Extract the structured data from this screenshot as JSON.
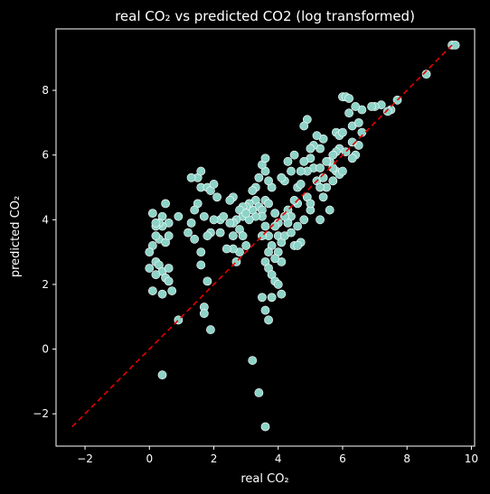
{
  "chart_data": {
    "type": "scatter",
    "title": "real CO₂ vs predicted CO2 (log transformed)",
    "xlabel": "real CO₂",
    "ylabel": "predicted CO₂",
    "xlim": [
      -2.9,
      10.1
    ],
    "ylim": [
      -3.0,
      9.9
    ],
    "xticks": [
      -2,
      0,
      2,
      4,
      6,
      8,
      10
    ],
    "yticks": [
      -2,
      0,
      2,
      4,
      6,
      8
    ],
    "grid": false,
    "colors": {
      "background": "#000000",
      "points": "#8dd3c7",
      "point_edge": "#ffffff",
      "reference_line": "#e50000",
      "axes": "#ffffff"
    },
    "reference_line": {
      "style": "dashed",
      "from": [
        -2.4,
        -2.4
      ],
      "to": [
        9.4,
        9.4
      ]
    },
    "points": [
      [
        9.4,
        9.4
      ],
      [
        9.5,
        9.4
      ],
      [
        8.6,
        8.5
      ],
      [
        7.7,
        7.7
      ],
      [
        7.5,
        7.4
      ],
      [
        7.4,
        7.35
      ],
      [
        7.2,
        7.55
      ],
      [
        7.0,
        7.5
      ],
      [
        6.9,
        7.5
      ],
      [
        6.6,
        7.4
      ],
      [
        6.4,
        7.5
      ],
      [
        6.3,
        6.9
      ],
      [
        6.5,
        7.0
      ],
      [
        6.6,
        6.7
      ],
      [
        6.5,
        6.3
      ],
      [
        6.4,
        6.0
      ],
      [
        6.3,
        5.9
      ],
      [
        6.2,
        7.3
      ],
      [
        6.0,
        7.8
      ],
      [
        6.1,
        7.8
      ],
      [
        6.2,
        7.75
      ],
      [
        5.8,
        6.7
      ],
      [
        5.9,
        6.6
      ],
      [
        6.0,
        6.7
      ],
      [
        5.9,
        6.2
      ],
      [
        5.8,
        6.1
      ],
      [
        5.6,
        5.8
      ],
      [
        5.7,
        6.0
      ],
      [
        5.8,
        5.5
      ],
      [
        5.9,
        5.4
      ],
      [
        6.0,
        5.5
      ],
      [
        5.7,
        5.2
      ],
      [
        5.5,
        5.0
      ],
      [
        5.4,
        4.7
      ],
      [
        5.3,
        6.2
      ],
      [
        5.4,
        6.5
      ],
      [
        5.2,
        6.6
      ],
      [
        5.1,
        6.3
      ],
      [
        5.0,
        6.2
      ],
      [
        4.9,
        7.1
      ],
      [
        4.8,
        6.9
      ],
      [
        5.0,
        5.9
      ],
      [
        5.1,
        5.6
      ],
      [
        5.2,
        5.2
      ],
      [
        5.3,
        5.0
      ],
      [
        5.5,
        5.8
      ],
      [
        5.3,
        5.6
      ],
      [
        4.9,
        5.5
      ],
      [
        4.7,
        5.5
      ],
      [
        4.8,
        5.8
      ],
      [
        4.5,
        6.0
      ],
      [
        4.3,
        5.8
      ],
      [
        4.4,
        5.5
      ],
      [
        4.6,
        5.0
      ],
      [
        4.7,
        5.1
      ],
      [
        4.9,
        4.7
      ],
      [
        5.0,
        4.3
      ],
      [
        4.8,
        4.0
      ],
      [
        4.6,
        4.5
      ],
      [
        4.5,
        4.6
      ],
      [
        4.3,
        4.3
      ],
      [
        4.4,
        4.1
      ],
      [
        4.3,
        3.9
      ],
      [
        4.2,
        4.1
      ],
      [
        4.0,
        3.9
      ],
      [
        3.9,
        3.8
      ],
      [
        4.0,
        3.5
      ],
      [
        4.1,
        3.3
      ],
      [
        4.0,
        3.0
      ],
      [
        4.1,
        2.7
      ],
      [
        3.9,
        2.8
      ],
      [
        3.8,
        3.2
      ],
      [
        3.7,
        3.5
      ],
      [
        3.6,
        3.8
      ],
      [
        3.7,
        3.0
      ],
      [
        3.6,
        2.7
      ],
      [
        3.7,
        2.5
      ],
      [
        3.8,
        2.3
      ],
      [
        3.9,
        2.1
      ],
      [
        4.0,
        2.0
      ],
      [
        4.1,
        1.7
      ],
      [
        3.8,
        1.6
      ],
      [
        3.6,
        1.2
      ],
      [
        3.5,
        1.6
      ],
      [
        3.7,
        0.9
      ],
      [
        3.6,
        -2.4
      ],
      [
        3.4,
        -1.35
      ],
      [
        3.2,
        -0.35
      ],
      [
        4.5,
        3.2
      ],
      [
        4.7,
        3.3
      ],
      [
        4.6,
        3.2
      ],
      [
        5.3,
        4.0
      ],
      [
        5.6,
        4.3
      ],
      [
        4.2,
        5.2
      ],
      [
        4.1,
        5.3
      ],
      [
        3.8,
        5.0
      ],
      [
        3.7,
        5.2
      ],
      [
        3.6,
        5.5
      ],
      [
        3.5,
        5.7
      ],
      [
        3.6,
        5.9
      ],
      [
        3.4,
        5.3
      ],
      [
        3.3,
        5.0
      ],
      [
        3.2,
        4.9
      ],
      [
        3.3,
        4.6
      ],
      [
        3.4,
        4.4
      ],
      [
        3.5,
        4.3
      ],
      [
        3.6,
        4.6
      ],
      [
        3.7,
        4.5
      ],
      [
        3.5,
        4.1
      ],
      [
        3.3,
        4.1
      ],
      [
        3.2,
        4.3
      ],
      [
        3.1,
        4.5
      ],
      [
        3.0,
        4.4
      ],
      [
        2.9,
        4.4
      ],
      [
        2.8,
        4.3
      ],
      [
        2.9,
        4.1
      ],
      [
        3.1,
        4.0
      ],
      [
        3.0,
        4.2
      ],
      [
        2.7,
        4.0
      ],
      [
        2.6,
        3.9
      ],
      [
        2.5,
        3.9
      ],
      [
        2.6,
        4.7
      ],
      [
        2.5,
        4.6
      ],
      [
        2.8,
        3.7
      ],
      [
        2.9,
        3.5
      ],
      [
        3.0,
        3.2
      ],
      [
        2.8,
        3.0
      ],
      [
        2.6,
        3.5
      ],
      [
        2.6,
        3.1
      ],
      [
        2.4,
        3.1
      ],
      [
        2.7,
        2.7
      ],
      [
        2.2,
        3.6
      ],
      [
        2.2,
        4.0
      ],
      [
        2.1,
        4.7
      ],
      [
        2.3,
        4.1
      ],
      [
        2.0,
        4.0
      ],
      [
        1.9,
        3.6
      ],
      [
        1.8,
        3.5
      ],
      [
        1.7,
        4.1
      ],
      [
        1.5,
        4.5
      ],
      [
        1.4,
        4.3
      ],
      [
        1.6,
        5.0
      ],
      [
        1.5,
        5.3
      ],
      [
        1.3,
        5.3
      ],
      [
        1.6,
        5.5
      ],
      [
        1.8,
        5.0
      ],
      [
        1.9,
        4.9
      ],
      [
        2.0,
        5.1
      ],
      [
        1.3,
        3.9
      ],
      [
        1.2,
        3.6
      ],
      [
        1.4,
        3.4
      ],
      [
        1.6,
        3.0
      ],
      [
        1.6,
        2.6
      ],
      [
        1.8,
        2.1
      ],
      [
        1.7,
        1.3
      ],
      [
        1.7,
        1.1
      ],
      [
        1.9,
        0.6
      ],
      [
        0.9,
        0.9
      ],
      [
        0.9,
        4.1
      ],
      [
        0.6,
        3.9
      ],
      [
        0.5,
        4.5
      ],
      [
        0.4,
        4.1
      ],
      [
        0.4,
        3.8
      ],
      [
        0.3,
        3.9
      ],
      [
        0.2,
        3.8
      ],
      [
        0.2,
        3.9
      ],
      [
        0.1,
        4.2
      ],
      [
        0.3,
        3.4
      ],
      [
        0.5,
        3.3
      ],
      [
        0.6,
        3.5
      ],
      [
        0.2,
        3.5
      ],
      [
        0.1,
        3.2
      ],
      [
        0.0,
        3.0
      ],
      [
        0.2,
        2.7
      ],
      [
        0.3,
        2.6
      ],
      [
        0.4,
        2.4
      ],
      [
        0.5,
        2.2
      ],
      [
        0.6,
        2.5
      ],
      [
        0.6,
        2.1
      ],
      [
        0.7,
        1.8
      ],
      [
        0.1,
        1.8
      ],
      [
        0.4,
        1.7
      ],
      [
        0.2,
        2.3
      ],
      [
        0.4,
        -0.8
      ],
      [
        0.0,
        2.5
      ],
      [
        3.5,
        3.5
      ],
      [
        3.9,
        4.2
      ],
      [
        4.2,
        3.5
      ],
      [
        4.4,
        3.6
      ],
      [
        4.6,
        3.8
      ],
      [
        5.0,
        4.5
      ],
      [
        5.4,
        5.3
      ],
      [
        5.7,
        5.6
      ],
      [
        6.1,
        6.1
      ],
      [
        6.3,
        6.4
      ]
    ]
  }
}
